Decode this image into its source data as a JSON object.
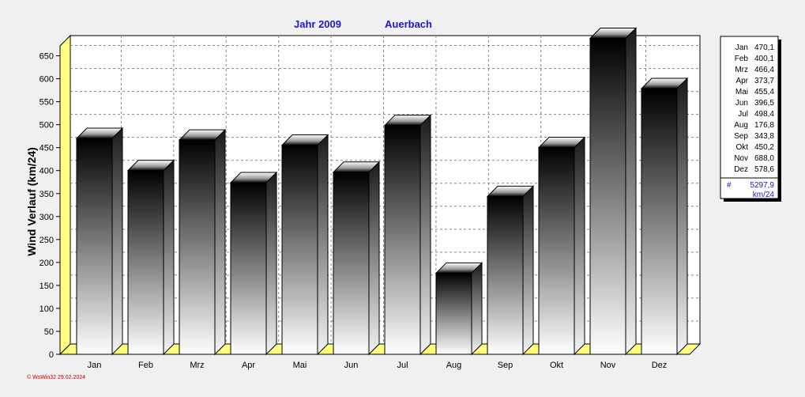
{
  "chart_data": {
    "type": "bar",
    "title_year": "Jahr  2009",
    "title_location": "Auerbach",
    "ylabel": "Wind Verlauf  (km/24)",
    "xlabel": "",
    "categories": [
      "Jan",
      "Feb",
      "Mrz",
      "Apr",
      "Mai",
      "Jun",
      "Jul",
      "Aug",
      "Sep",
      "Okt",
      "Nov",
      "Dez"
    ],
    "values": [
      470.1,
      400.1,
      466.4,
      373.7,
      455.4,
      396.5,
      498.4,
      176.8,
      343.8,
      450.2,
      688.0,
      578.6
    ],
    "value_labels": [
      "470,1",
      "400,1",
      "466,4",
      "373,7",
      "455,4",
      "396,5",
      "498,4",
      "176,8",
      "343,8",
      "450,2",
      "688,0",
      "578,6"
    ],
    "ylim": [
      0,
      700
    ],
    "yticks": [
      0,
      50,
      100,
      150,
      200,
      250,
      300,
      350,
      400,
      450,
      500,
      550,
      600,
      650
    ],
    "grid": true,
    "legend": {
      "placement": "right",
      "total_symbol": "#",
      "total_value": "5297,9",
      "total_unit": "km/24"
    },
    "colors": {
      "title": "#1a1acc",
      "bar_dark": "#000000",
      "bar_light": "#ffffff",
      "floor": "#ffff80",
      "footer": "#cc0000"
    }
  },
  "footer": "© WsWin32  29.02.2024"
}
